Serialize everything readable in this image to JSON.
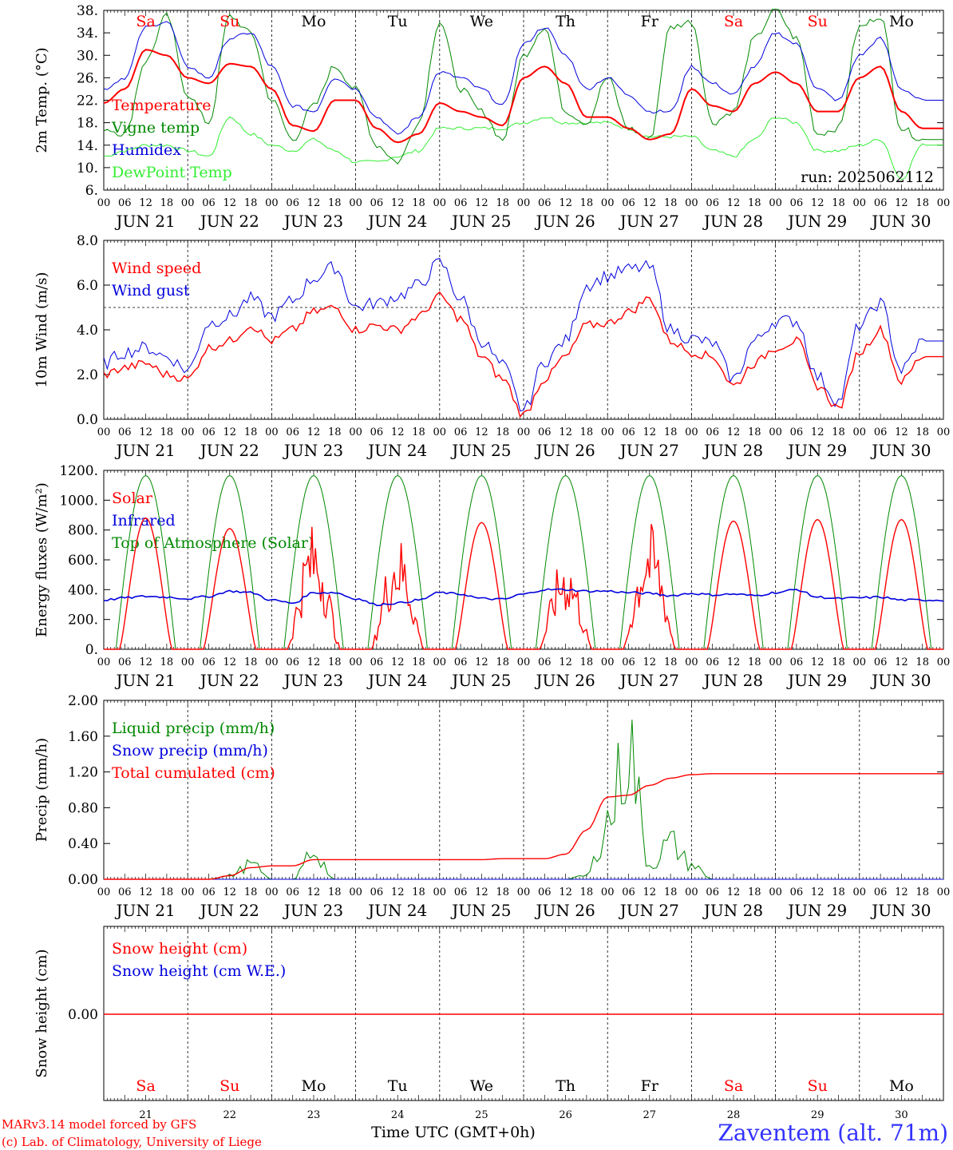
{
  "days": [
    "JUN 21",
    "JUN 22",
    "JUN 23",
    "JUN 24",
    "JUN 25",
    "JUN 26",
    "JUN 27",
    "JUN 28",
    "JUN 29",
    "JUN 30"
  ],
  "day_numbers": [
    "21",
    "22",
    "23",
    "24",
    "25",
    "26",
    "27",
    "28",
    "29",
    "30"
  ],
  "weekdays": [
    "Sa",
    "Su",
    "Mo",
    "Tu",
    "We",
    "Th",
    "Fr",
    "Sa",
    "Su",
    "Mo"
  ],
  "hour_ticks": [
    "00",
    "06",
    "12",
    "18"
  ],
  "run_label": "run: 2025062112",
  "xlabel": "Time UTC (GMT+0h)",
  "credits": [
    "MARv3.14 model forced by GFS",
    "(c) Lab. of Climatology, University of Liege"
  ],
  "station": "Zaventem (alt. 71m)",
  "colors": {
    "weekend": "#ff0000",
    "weekday": "#000000",
    "red": "#ff0000",
    "green": "#008800",
    "blue": "#0000dd",
    "lightgreen": "#33ee33",
    "station": "#3333ff"
  },
  "chart_data": [
    {
      "type": "line",
      "ylabel": "2m Temp. (°C)",
      "ylim": [
        6,
        38
      ],
      "yticks": [
        "6.",
        "10.",
        "14.",
        "18.",
        "22.",
        "26.",
        "30.",
        "34.",
        "38."
      ],
      "legend": [
        "Temperature",
        "Vigne temp",
        "Humidex",
        "DewPoint Temp"
      ],
      "x_hours": [
        0,
        6,
        12,
        18,
        24,
        30,
        36,
        42,
        48,
        54,
        60,
        66,
        72,
        78,
        84,
        90,
        96,
        102,
        108,
        114,
        120,
        126,
        132,
        138,
        144,
        150,
        156,
        162,
        168,
        174,
        180,
        186,
        192,
        198,
        204,
        210,
        216,
        222,
        228,
        234
      ],
      "series": [
        {
          "name": "Temperature",
          "values": [
            21.5,
            24,
            31,
            30,
            26,
            25,
            28.5,
            28,
            24,
            17.5,
            16.5,
            22,
            22,
            17,
            14.5,
            16,
            21.5,
            20,
            19,
            17.5,
            26,
            28,
            25,
            19,
            19,
            17,
            15,
            16,
            24,
            21,
            20,
            25,
            27,
            25,
            20,
            20,
            26,
            28,
            20,
            17
          ]
        },
        {
          "name": "Vigne temp",
          "values": [
            17,
            16,
            29,
            37,
            23,
            18,
            37,
            34,
            22,
            15,
            21,
            28,
            24,
            14,
            11,
            18,
            36,
            24,
            20,
            15,
            30,
            35,
            20,
            18,
            26,
            17,
            15,
            35,
            36,
            18,
            20,
            33,
            38,
            33,
            16,
            17,
            35,
            37,
            17,
            15
          ]
        },
        {
          "name": "Humidex",
          "values": [
            24,
            26,
            35,
            36,
            28,
            26,
            33,
            34,
            28,
            21,
            20,
            26,
            24,
            19,
            16,
            19,
            27,
            26,
            24,
            21,
            32,
            35,
            30,
            24,
            26,
            23,
            20,
            20,
            28,
            25,
            23,
            28,
            34,
            32,
            24,
            22,
            30,
            33,
            24,
            22
          ]
        },
        {
          "name": "DewPoint Temp",
          "values": [
            12,
            13,
            14,
            14,
            13,
            12,
            19,
            16,
            14,
            13,
            15,
            13,
            11,
            11,
            12,
            13,
            17,
            17,
            17,
            17,
            18,
            19,
            18,
            18,
            18,
            17,
            15.5,
            15.5,
            15.5,
            13,
            12,
            15,
            19,
            18,
            13,
            13,
            14,
            15,
            8,
            14
          ]
        }
      ]
    },
    {
      "type": "line",
      "ylabel": "10m Wind (m/s)",
      "ylim": [
        0,
        8
      ],
      "yticks": [
        "0.0",
        "2.0",
        "4.0",
        "6.0",
        "8.0"
      ],
      "reference_line": 5,
      "legend": [
        "Wind speed",
        "Wind gust"
      ],
      "x_hours": [
        0,
        6,
        12,
        18,
        24,
        30,
        36,
        42,
        48,
        54,
        60,
        66,
        72,
        78,
        84,
        90,
        96,
        102,
        108,
        114,
        120,
        126,
        132,
        138,
        144,
        150,
        156,
        162,
        168,
        174,
        180,
        186,
        192,
        198,
        204,
        210,
        216,
        222,
        228,
        234
      ],
      "series": [
        {
          "name": "Wind speed",
          "values": [
            2.0,
            2.3,
            2.5,
            2.0,
            1.8,
            3.2,
            3.5,
            4.2,
            3.5,
            4.0,
            4.8,
            5.0,
            4.0,
            4.2,
            4.0,
            4.6,
            5.5,
            4.5,
            2.8,
            1.8,
            0.2,
            1.8,
            2.8,
            4.2,
            4.3,
            4.8,
            5.4,
            3.5,
            3.0,
            2.8,
            1.5,
            2.5,
            3.2,
            3.5,
            1.5,
            0.5,
            3.0,
            4.0,
            1.7,
            2.8
          ]
        },
        {
          "name": "Wind gust",
          "values": [
            2.5,
            3.0,
            3.2,
            2.8,
            2.2,
            4.3,
            4.6,
            5.4,
            4.6,
            5.3,
            6.3,
            6.8,
            5.0,
            5.2,
            5.5,
            6.0,
            7.0,
            5.4,
            3.5,
            2.4,
            0.4,
            2.6,
            3.5,
            6.0,
            6.4,
            6.7,
            6.8,
            4.0,
            3.6,
            3.4,
            1.8,
            3.5,
            4.4,
            4.4,
            1.9,
            0.8,
            4.2,
            5.2,
            2.2,
            3.5
          ]
        }
      ]
    },
    {
      "type": "line",
      "ylabel": "Energy fluxes (W/m²)",
      "ylim": [
        0,
        1200
      ],
      "yticks": [
        "0.",
        "200.",
        "400.",
        "600.",
        "800.",
        "1000.",
        "1200."
      ],
      "legend": [
        "Solar",
        "Infrared",
        "Top of Atmosphere (Solar)"
      ],
      "daily_solar_peak": [
        880,
        810,
        850,
        780,
        850,
        650,
        850,
        860,
        870,
        870
      ],
      "toa_peak": 1165,
      "infrared_values": [
        330,
        345,
        355,
        350,
        340,
        355,
        390,
        380,
        330,
        310,
        380,
        380,
        340,
        300,
        310,
        330,
        380,
        370,
        340,
        335,
        370,
        400,
        400,
        390,
        390,
        380,
        375,
        360,
        375,
        365,
        370,
        360,
        380,
        400,
        350,
        340,
        345,
        350,
        330,
        330
      ]
    },
    {
      "type": "line",
      "ylabel": "Precip (mm/h)",
      "ylim": [
        0,
        2.0
      ],
      "yticks": [
        "0.00",
        "0.40",
        "0.80",
        "1.20",
        "1.60",
        "2.00"
      ],
      "legend": [
        "Liquid precip (mm/h)",
        "Snow precip (mm/h)",
        "Total cumulated (cm)"
      ],
      "x_hours": [
        0,
        6,
        12,
        18,
        24,
        30,
        36,
        42,
        48,
        54,
        60,
        66,
        72,
        78,
        84,
        90,
        96,
        102,
        108,
        114,
        120,
        126,
        132,
        138,
        144,
        150,
        156,
        162,
        168,
        174,
        180,
        186,
        192,
        198,
        204,
        210,
        216,
        222,
        228,
        234
      ],
      "series": [
        {
          "name": "Liquid precip (mm/h)",
          "values": [
            0,
            0,
            0,
            0,
            0,
            0,
            0.05,
            0.2,
            0,
            0,
            0.4,
            0,
            0,
            0,
            0,
            0,
            0,
            0,
            0,
            0,
            0,
            0,
            0,
            0.05,
            0.8,
            1.85,
            0.2,
            0.5,
            0.2,
            0,
            0,
            0,
            0,
            0,
            0,
            0,
            0,
            0,
            0,
            0
          ]
        },
        {
          "name": "Total cumulated (cm)",
          "values": [
            0,
            0,
            0,
            0,
            0,
            0,
            0.04,
            0.13,
            0.15,
            0.15,
            0.22,
            0.22,
            0.22,
            0.22,
            0.22,
            0.22,
            0.22,
            0.22,
            0.22,
            0.23,
            0.23,
            0.23,
            0.28,
            0.55,
            0.92,
            0.94,
            1.05,
            1.13,
            1.17,
            1.18,
            1.18,
            1.18,
            1.18,
            1.18,
            1.18,
            1.18,
            1.18,
            1.18,
            1.18,
            1.18
          ]
        }
      ]
    },
    {
      "type": "line",
      "ylabel": "Snow height (cm)",
      "ytick": "0.00",
      "legend": [
        "Snow height (cm)",
        "Snow height (cm W.E.)"
      ],
      "values": [
        0,
        0
      ]
    }
  ]
}
